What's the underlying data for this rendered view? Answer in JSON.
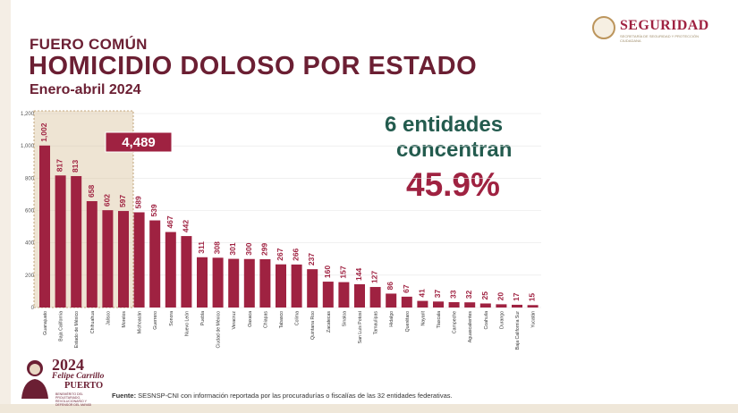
{
  "header": {
    "kicker": "FUERO COMÚN",
    "title": "HOMICIDIO DOLOSO POR ESTADO",
    "subtitle": "Enero-abril 2024"
  },
  "logo": {
    "text": "SEGURIDAD",
    "subtext": "SECRETARÍA DE SEGURIDAD Y PROTECCIÓN CIUDADANA"
  },
  "highlight": {
    "line1": "6 entidades",
    "line2": "concentran",
    "percent": "45.9%"
  },
  "source": {
    "label": "Fuente:",
    "text": " SESNSP-CNI con información reportada por las procuradurías o fiscalías de las 32 entidades federativas."
  },
  "footer_logo": {
    "year": "2024",
    "name": "Felipe Carrillo",
    "name2": "PUERTO",
    "small": "BENEMÉRITO DEL PROLETARIADO, REVOLUCIONARIO Y DEFENSOR DEL MAYAB"
  },
  "colors": {
    "bar": "#9f2241",
    "title": "#6b1f33",
    "accent_green": "#235b4e",
    "highlight_fill": "#d9c49e",
    "highlight_border": "#b38e5d"
  },
  "chart_data": {
    "type": "bar",
    "categories": [
      "Guanajuato",
      "Baja California",
      "Estado de México",
      "Chihuahua",
      "Jalisco",
      "Morelos",
      "Michoacán",
      "Guerrero",
      "Sonora",
      "Nuevo León",
      "Puebla",
      "Ciudad de México",
      "Veracruz",
      "Oaxaca",
      "Chiapas",
      "Tabasco",
      "Colima",
      "Quintana Roo",
      "Zacatecas",
      "Sinaloa",
      "San Luis Potosí",
      "Tamaulipas",
      "Hidalgo",
      "Querétaro",
      "Nayarit",
      "Tlaxcala",
      "Campeche",
      "Aguascalientes",
      "Coahuila",
      "Durango",
      "Baja California Sur",
      "Yucatán"
    ],
    "values": [
      1002,
      817,
      813,
      658,
      602,
      597,
      589,
      539,
      467,
      442,
      311,
      308,
      301,
      300,
      299,
      267,
      266,
      237,
      160,
      157,
      144,
      127,
      86,
      67,
      41,
      37,
      33,
      32,
      25,
      20,
      17,
      15
    ],
    "ylim": [
      0,
      1200
    ],
    "yticks": [
      "0",
      "200",
      "400",
      "600",
      "800",
      "1,000",
      "1,200"
    ],
    "yticks_values": [
      0,
      200,
      400,
      600,
      800,
      1000,
      1200
    ],
    "highlight_count": 6,
    "highlight_total": "4,489"
  }
}
